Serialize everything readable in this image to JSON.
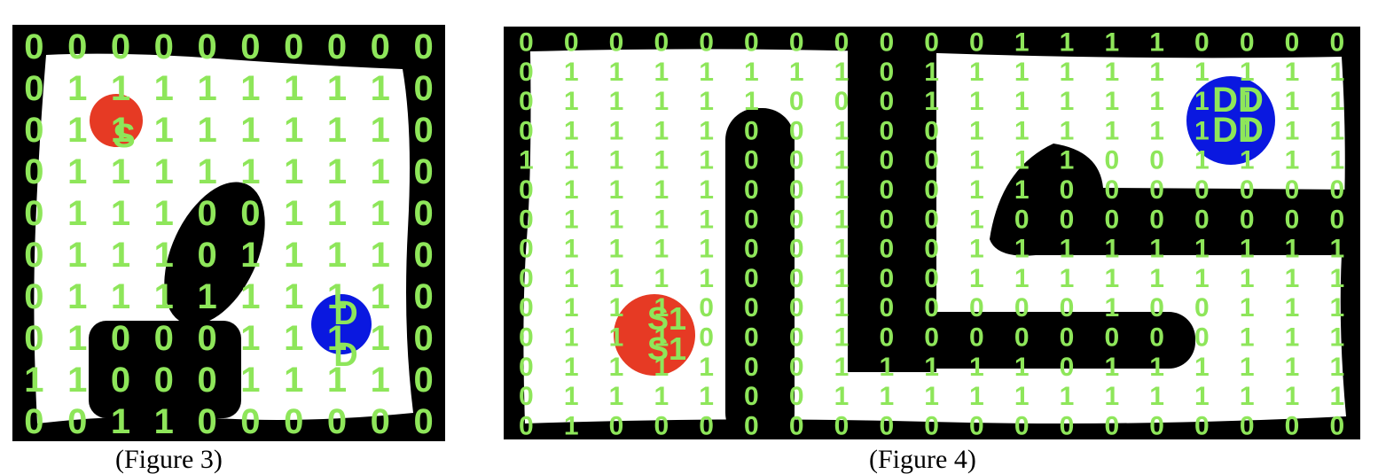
{
  "colors": {
    "wall": "#000000",
    "floor": "#ffffff",
    "digit": "#8ee65a",
    "start_marker": "#e63a24",
    "dest_marker": "#0a18e0"
  },
  "figures": [
    {
      "caption": "(Figure 3)",
      "start_marker_labels": [
        "S"
      ],
      "dest_marker_labels": [
        "D",
        "D"
      ],
      "grid": [
        [
          "0",
          "0",
          "0",
          "0",
          "0",
          "0",
          "0",
          "0",
          "0",
          "0"
        ],
        [
          "0",
          "1",
          "1",
          "1",
          "1",
          "1",
          "1",
          "1",
          "1",
          "0"
        ],
        [
          "0",
          "1",
          "1",
          "1",
          "1",
          "1",
          "1",
          "1",
          "1",
          "0"
        ],
        [
          "0",
          "1",
          "1",
          "1",
          "1",
          "1",
          "1",
          "1",
          "1",
          "0"
        ],
        [
          "0",
          "1",
          "1",
          "1",
          "0",
          "0",
          "1",
          "1",
          "1",
          "0"
        ],
        [
          "0",
          "1",
          "1",
          "1",
          "0",
          "1",
          "1",
          "1",
          "1",
          "0"
        ],
        [
          "0",
          "1",
          "1",
          "1",
          "1",
          "1",
          "1",
          "1",
          "1",
          "0"
        ],
        [
          "0",
          "1",
          "0",
          "0",
          "0",
          "1",
          "1",
          "1",
          "1",
          "0"
        ],
        [
          "1",
          "1",
          "0",
          "0",
          "0",
          "1",
          "1",
          "1",
          "1",
          "0"
        ],
        [
          "0",
          "0",
          "1",
          "1",
          "0",
          "0",
          "0",
          "0",
          "0",
          "0"
        ]
      ]
    },
    {
      "caption": "(Figure 4)",
      "start_marker_labels": [
        "S1",
        "S1"
      ],
      "dest_marker_labels": [
        "DD",
        "DD"
      ],
      "grid": [
        [
          "0",
          "0",
          "0",
          "0",
          "0",
          "0",
          "0",
          "0",
          "0",
          "0",
          "0",
          "1",
          "1",
          "1",
          "1",
          "0",
          "0",
          "0",
          "0"
        ],
        [
          "0",
          "1",
          "1",
          "1",
          "1",
          "1",
          "1",
          "1",
          "0",
          "1",
          "1",
          "1",
          "1",
          "1",
          "1",
          "1",
          "1",
          "1",
          "1"
        ],
        [
          "0",
          "1",
          "1",
          "1",
          "1",
          "1",
          "0",
          "0",
          "0",
          "1",
          "1",
          "1",
          "1",
          "1",
          "1",
          "1",
          "1",
          "1",
          "1"
        ],
        [
          "0",
          "1",
          "1",
          "1",
          "1",
          "0",
          "0",
          "1",
          "0",
          "0",
          "1",
          "1",
          "1",
          "1",
          "1",
          "1",
          "1",
          "1",
          "1"
        ],
        [
          "1",
          "1",
          "1",
          "1",
          "1",
          "0",
          "0",
          "1",
          "0",
          "0",
          "1",
          "1",
          "1",
          "0",
          "0",
          "1",
          "1",
          "1",
          "1"
        ],
        [
          "0",
          "1",
          "1",
          "1",
          "1",
          "0",
          "0",
          "1",
          "0",
          "0",
          "1",
          "1",
          "0",
          "0",
          "0",
          "0",
          "0",
          "0",
          "0"
        ],
        [
          "0",
          "1",
          "1",
          "1",
          "1",
          "0",
          "0",
          "1",
          "0",
          "0",
          "1",
          "0",
          "0",
          "0",
          "0",
          "0",
          "0",
          "0",
          "0"
        ],
        [
          "0",
          "1",
          "1",
          "1",
          "1",
          "0",
          "0",
          "1",
          "0",
          "0",
          "1",
          "1",
          "1",
          "1",
          "1",
          "1",
          "1",
          "1",
          "1"
        ],
        [
          "0",
          "1",
          "1",
          "1",
          "1",
          "0",
          "0",
          "1",
          "0",
          "0",
          "1",
          "1",
          "1",
          "1",
          "1",
          "1",
          "1",
          "1",
          "1"
        ],
        [
          "0",
          "1",
          "1",
          "1",
          "0",
          "0",
          "0",
          "1",
          "0",
          "0",
          "0",
          "0",
          "0",
          "1",
          "0",
          "0",
          "1",
          "1",
          "1"
        ],
        [
          "0",
          "1",
          "1",
          "1",
          "0",
          "0",
          "0",
          "1",
          "0",
          "0",
          "0",
          "0",
          "0",
          "0",
          "0",
          "0",
          "1",
          "1",
          "1"
        ],
        [
          "0",
          "1",
          "1",
          "1",
          "1",
          "0",
          "0",
          "1",
          "1",
          "1",
          "1",
          "1",
          "0",
          "1",
          "1",
          "1",
          "1",
          "1",
          "1"
        ],
        [
          "0",
          "1",
          "1",
          "1",
          "1",
          "0",
          "0",
          "1",
          "1",
          "1",
          "1",
          "1",
          "1",
          "1",
          "1",
          "1",
          "1",
          "1",
          "1"
        ],
        [
          "0",
          "1",
          "0",
          "0",
          "0",
          "0",
          "0",
          "0",
          "0",
          "0",
          "0",
          "0",
          "0",
          "0",
          "0",
          "0",
          "0",
          "0",
          "0"
        ]
      ]
    }
  ]
}
